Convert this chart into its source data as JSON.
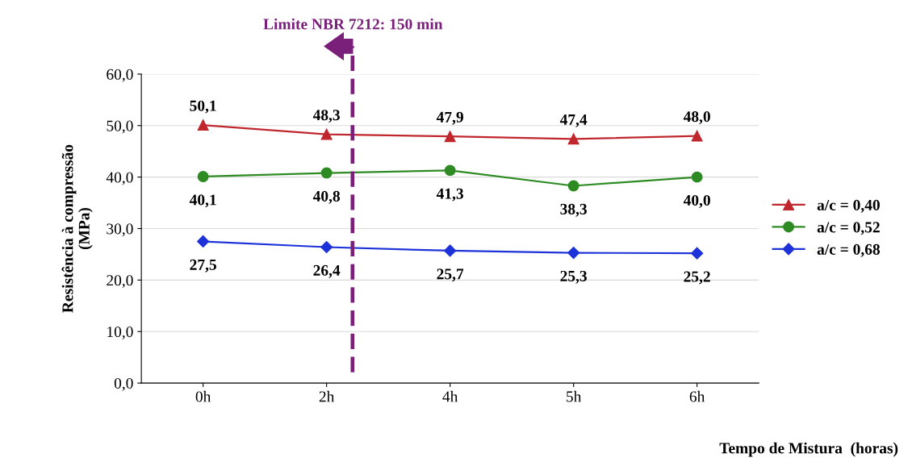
{
  "chart_data": {
    "type": "line",
    "xlabel": "Tempo de Mistura  (horas)",
    "ylabel": "Resistência à compressão\n(MPa)",
    "categories": [
      "0h",
      "2h",
      "4h",
      "5h",
      "6h"
    ],
    "series": [
      {
        "name": "a/c = 0,40",
        "color": "#c0272d",
        "marker": "triangle",
        "values": [
          50.1,
          48.3,
          47.9,
          47.4,
          48.0
        ],
        "value_labels": [
          "50,1",
          "48,3",
          "47,9",
          "47,4",
          "48,0"
        ]
      },
      {
        "name": "a/c = 0,52",
        "color": "#2e8b23",
        "marker": "circle",
        "values": [
          40.1,
          40.8,
          41.3,
          38.3,
          40.0
        ],
        "value_labels": [
          "40,1",
          "40,8",
          "41,3",
          "38,3",
          "40,0"
        ]
      },
      {
        "name": "a/c = 0,68",
        "color": "#1d32d8",
        "marker": "diamond",
        "values": [
          27.5,
          26.4,
          25.7,
          25.3,
          25.2
        ],
        "value_labels": [
          "27,5",
          "26,4",
          "25,7",
          "25,3",
          "25,2"
        ]
      }
    ],
    "ylim": [
      0,
      60
    ],
    "yticks": [
      {
        "value": 0,
        "label": "0,0"
      },
      {
        "value": 10,
        "label": "10,0"
      },
      {
        "value": 20,
        "label": "20,0"
      },
      {
        "value": 30,
        "label": "30,0"
      },
      {
        "value": 40,
        "label": "40,0"
      },
      {
        "value": 50,
        "label": "50,0"
      },
      {
        "value": 60,
        "label": "60,0"
      }
    ],
    "annotations": [
      "Limite NBR 7212: 150 min"
    ],
    "grid": "y",
    "legend": "right",
    "line_style": "solid"
  }
}
